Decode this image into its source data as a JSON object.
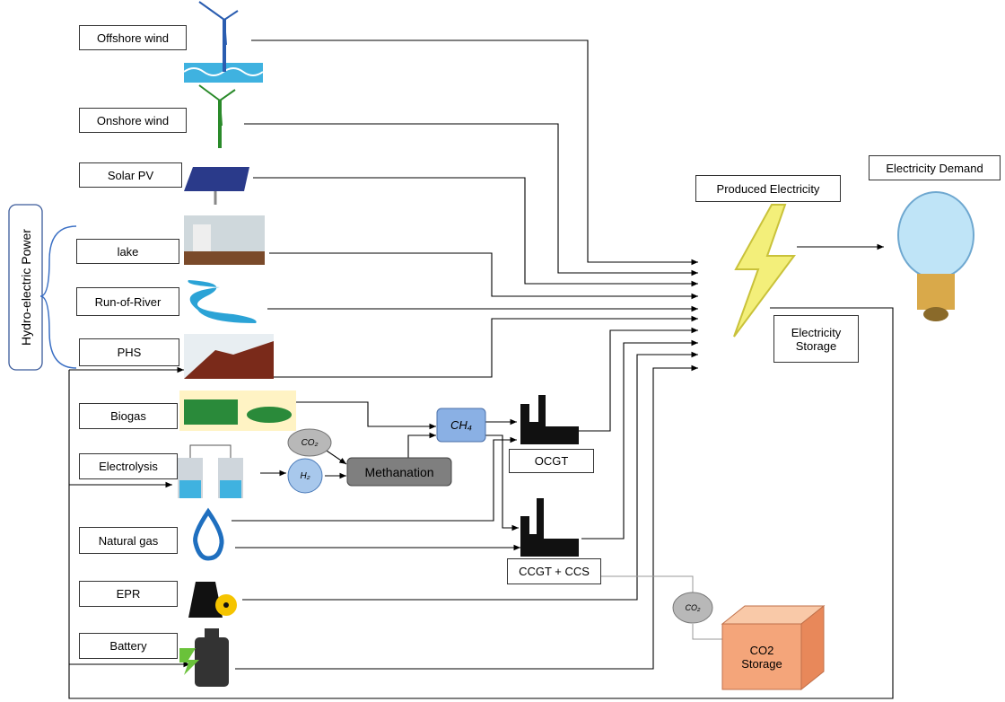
{
  "hydro_group": "Hydro-electric Power",
  "sources": [
    {
      "label": "Offshore wind"
    },
    {
      "label": "Onshore wind"
    },
    {
      "label": "Solar PV"
    },
    {
      "label": "lake"
    },
    {
      "label": "Run-of-River"
    },
    {
      "label": "PHS"
    },
    {
      "label": "Biogas"
    },
    {
      "label": "Electrolysis"
    },
    {
      "label": "Natural gas"
    },
    {
      "label": "EPR"
    },
    {
      "label": "Battery"
    }
  ],
  "nodes": {
    "ch4": "CH₄",
    "co2_in": "CO₂",
    "h2": "H₂",
    "methanation": "Methanation",
    "ocgt": "OCGT",
    "ccgt": "CCGT + CCS",
    "co2_out": "CO₂",
    "produced": "Produced Electricity",
    "demand": "Electricity Demand",
    "storage": "Electricity Storage",
    "co2_storage": "CO2 Storage"
  }
}
